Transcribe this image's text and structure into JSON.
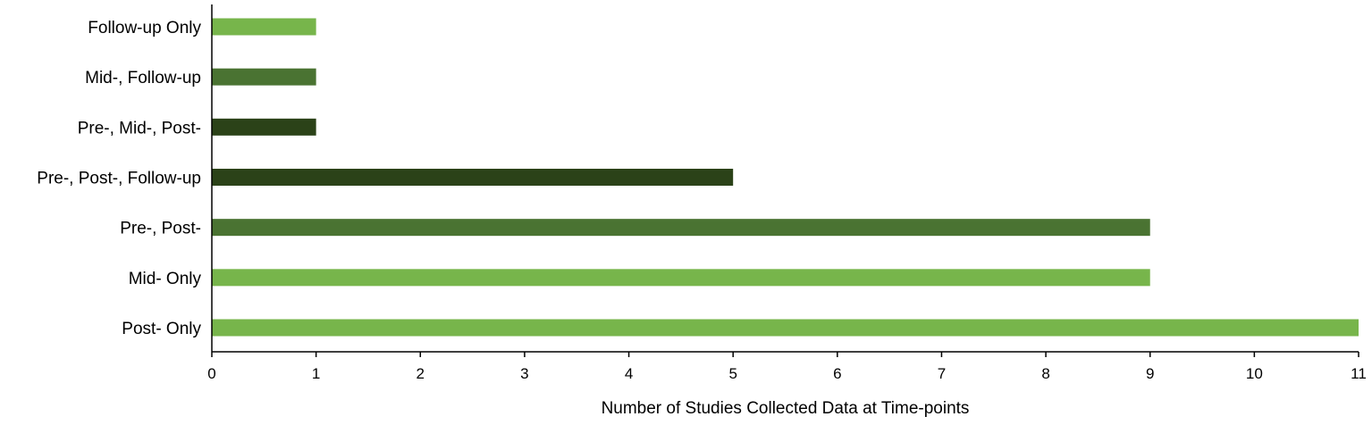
{
  "chart_data": {
    "type": "bar",
    "orientation": "horizontal",
    "categories": [
      "Post- Only",
      "Mid- Only",
      "Pre-, Post-",
      "Pre-, Post-, Follow-up",
      "Pre-, Mid-, Post-",
      "Mid-, Follow-up",
      "Follow-up Only"
    ],
    "values": [
      11,
      9,
      9,
      5,
      1,
      1,
      1
    ],
    "bar_colors": [
      "#77b54b",
      "#77b54b",
      "#4a7332",
      "#2b4218",
      "#2b4218",
      "#4a7332",
      "#77b54b"
    ],
    "xlabel": "Number of Studies Collected Data at Time-points",
    "ylabel": "",
    "xlim": [
      0,
      11
    ],
    "xticks": [
      "0",
      "1",
      "2",
      "3",
      "4",
      "5",
      "6",
      "7",
      "8",
      "9",
      "10",
      "11"
    ],
    "grid": false,
    "legend": "none"
  }
}
